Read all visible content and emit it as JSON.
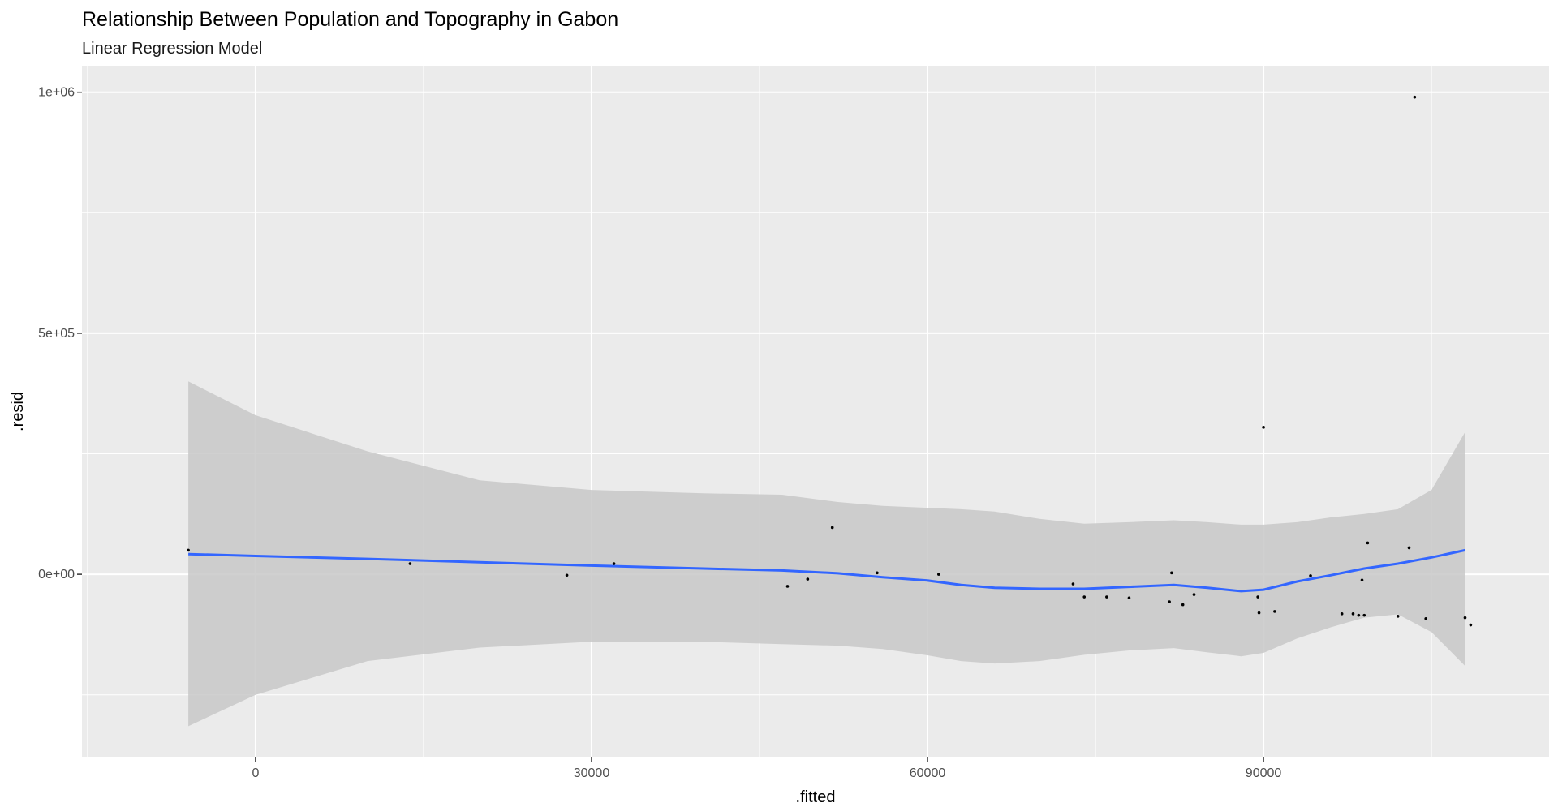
{
  "chart_data": {
    "type": "scatter",
    "title": "Relationship Between Population and Topography in Gabon",
    "subtitle": "Linear Regression Model",
    "xlabel": ".fitted",
    "ylabel": ".resid",
    "xlim": [
      -15500,
      115500
    ],
    "ylim": [
      -380000,
      1055000
    ],
    "x_ticks": [
      0,
      30000,
      60000,
      90000
    ],
    "x_tick_labels": [
      "0",
      "30000",
      "60000",
      "90000"
    ],
    "y_ticks": [
      0,
      500000,
      1000000
    ],
    "y_tick_labels": [
      "0e+00",
      "5e+05",
      "1e+06"
    ],
    "grid": true,
    "legend": "none",
    "colors": {
      "panel": "#ebebeb",
      "grid": "#ffffff",
      "points": "#000000",
      "smooth_line": "#3366ff",
      "confidence_band": "#c8c8c8"
    },
    "points": [
      {
        "x": -6000,
        "y": 50000
      },
      {
        "x": 13800,
        "y": 22000
      },
      {
        "x": 27800,
        "y": -2000
      },
      {
        "x": 32000,
        "y": 22000
      },
      {
        "x": 47500,
        "y": -25000
      },
      {
        "x": 49300,
        "y": -10000
      },
      {
        "x": 51500,
        "y": 97000
      },
      {
        "x": 55500,
        "y": 3000
      },
      {
        "x": 61000,
        "y": 0
      },
      {
        "x": 73000,
        "y": -20000
      },
      {
        "x": 74000,
        "y": -47000
      },
      {
        "x": 76000,
        "y": -47000
      },
      {
        "x": 78000,
        "y": -49000
      },
      {
        "x": 81600,
        "y": -57000
      },
      {
        "x": 81800,
        "y": 3000
      },
      {
        "x": 82800,
        "y": -63000
      },
      {
        "x": 83800,
        "y": -42000
      },
      {
        "x": 89500,
        "y": -47000
      },
      {
        "x": 89600,
        "y": -80000
      },
      {
        "x": 90000,
        "y": 305000
      },
      {
        "x": 91000,
        "y": -77000
      },
      {
        "x": 94200,
        "y": -3000
      },
      {
        "x": 97000,
        "y": -82000
      },
      {
        "x": 98000,
        "y": -82000
      },
      {
        "x": 98500,
        "y": -85000
      },
      {
        "x": 98800,
        "y": -12000
      },
      {
        "x": 99000,
        "y": -85000
      },
      {
        "x": 99300,
        "y": 65000
      },
      {
        "x": 102000,
        "y": -87000
      },
      {
        "x": 103000,
        "y": 55000
      },
      {
        "x": 103500,
        "y": 990000
      },
      {
        "x": 104500,
        "y": -92000
      },
      {
        "x": 108000,
        "y": -90000
      },
      {
        "x": 108500,
        "y": -105000
      }
    ],
    "smooth": {
      "x": [
        -6000,
        0,
        10000,
        20000,
        30000,
        40000,
        47000,
        52000,
        56000,
        60000,
        63000,
        66000,
        70000,
        74000,
        78000,
        82000,
        85000,
        88000,
        90000,
        93000,
        96000,
        99000,
        102000,
        105000,
        108000
      ],
      "y": [
        42000,
        38000,
        32000,
        25000,
        18000,
        12000,
        8000,
        2000,
        -6000,
        -13000,
        -22000,
        -28000,
        -30000,
        -30000,
        -26000,
        -22000,
        -28000,
        -35000,
        -32000,
        -15000,
        -2000,
        12000,
        22000,
        35000,
        50000
      ],
      "lower": [
        -315000,
        -250000,
        -180000,
        -152000,
        -140000,
        -140000,
        -145000,
        -148000,
        -155000,
        -168000,
        -180000,
        -185000,
        -180000,
        -167000,
        -158000,
        -153000,
        -162000,
        -170000,
        -163000,
        -133000,
        -110000,
        -90000,
        -83000,
        -120000,
        -190000
      ],
      "upper": [
        400000,
        330000,
        255000,
        195000,
        175000,
        168000,
        165000,
        150000,
        142000,
        138000,
        135000,
        130000,
        115000,
        105000,
        108000,
        112000,
        108000,
        103000,
        103000,
        108000,
        118000,
        125000,
        135000,
        175000,
        295000
      ]
    }
  }
}
